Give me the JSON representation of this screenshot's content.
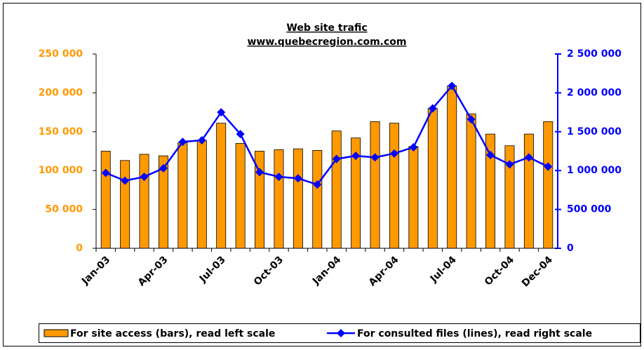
{
  "chart_data": {
    "type": "bar_line",
    "title": "Web site trafic",
    "subtitle": "www.quebecregion.com.com",
    "categories": [
      "Jan-03",
      null,
      null,
      "Apr-03",
      null,
      null,
      "Jul-03",
      null,
      null,
      "Oct-03",
      null,
      null,
      "Jan-04",
      null,
      null,
      "Apr-04",
      null,
      null,
      "Jul-04",
      null,
      null,
      "Oct-04",
      null,
      "Dec-04"
    ],
    "series": [
      {
        "name": "For site access (bars), read left scale",
        "color": "#ff9900",
        "values": [
          125000,
          113000,
          121000,
          119000,
          136000,
          139000,
          161000,
          135000,
          125000,
          127000,
          128000,
          126000,
          151000,
          142000,
          163000,
          161000,
          131000,
          180000,
          209000,
          173000,
          147000,
          132000,
          147000,
          163000
        ]
      },
      {
        "name": "For consulted files (lines), read right scale",
        "color": "#0000ff",
        "axis": "y2",
        "values": [
          970000,
          870000,
          920000,
          1030000,
          1370000,
          1390000,
          1750000,
          1470000,
          980000,
          920000,
          900000,
          820000,
          1150000,
          1190000,
          1170000,
          1220000,
          1300000,
          1800000,
          2090000,
          1660000,
          1200000,
          1080000,
          1170000,
          1050000
        ]
      }
    ],
    "ylim": [
      0,
      250000
    ],
    "yticks": [
      0,
      {
        "value": 50000,
        "label": "50 000"
      },
      {
        "value": 100000,
        "label": "100 000"
      },
      {
        "value": 150000,
        "label": "150 000"
      },
      {
        "value": 200000,
        "label": "200 000"
      },
      {
        "value": 250000,
        "label": "250 000"
      }
    ],
    "y2lim": [
      0,
      2500000
    ],
    "y2ticks": [
      0,
      {
        "value": 500000,
        "label": "500 000"
      },
      {
        "value": 1000000,
        "label": "1 000 000"
      },
      {
        "value": 1500000,
        "label": "1 500 000"
      },
      {
        "value": 2000000,
        "label": "2 000 000"
      },
      {
        "value": 2500000,
        "label": "2 500 000"
      }
    ],
    "grid": true,
    "legend": "bottom"
  }
}
